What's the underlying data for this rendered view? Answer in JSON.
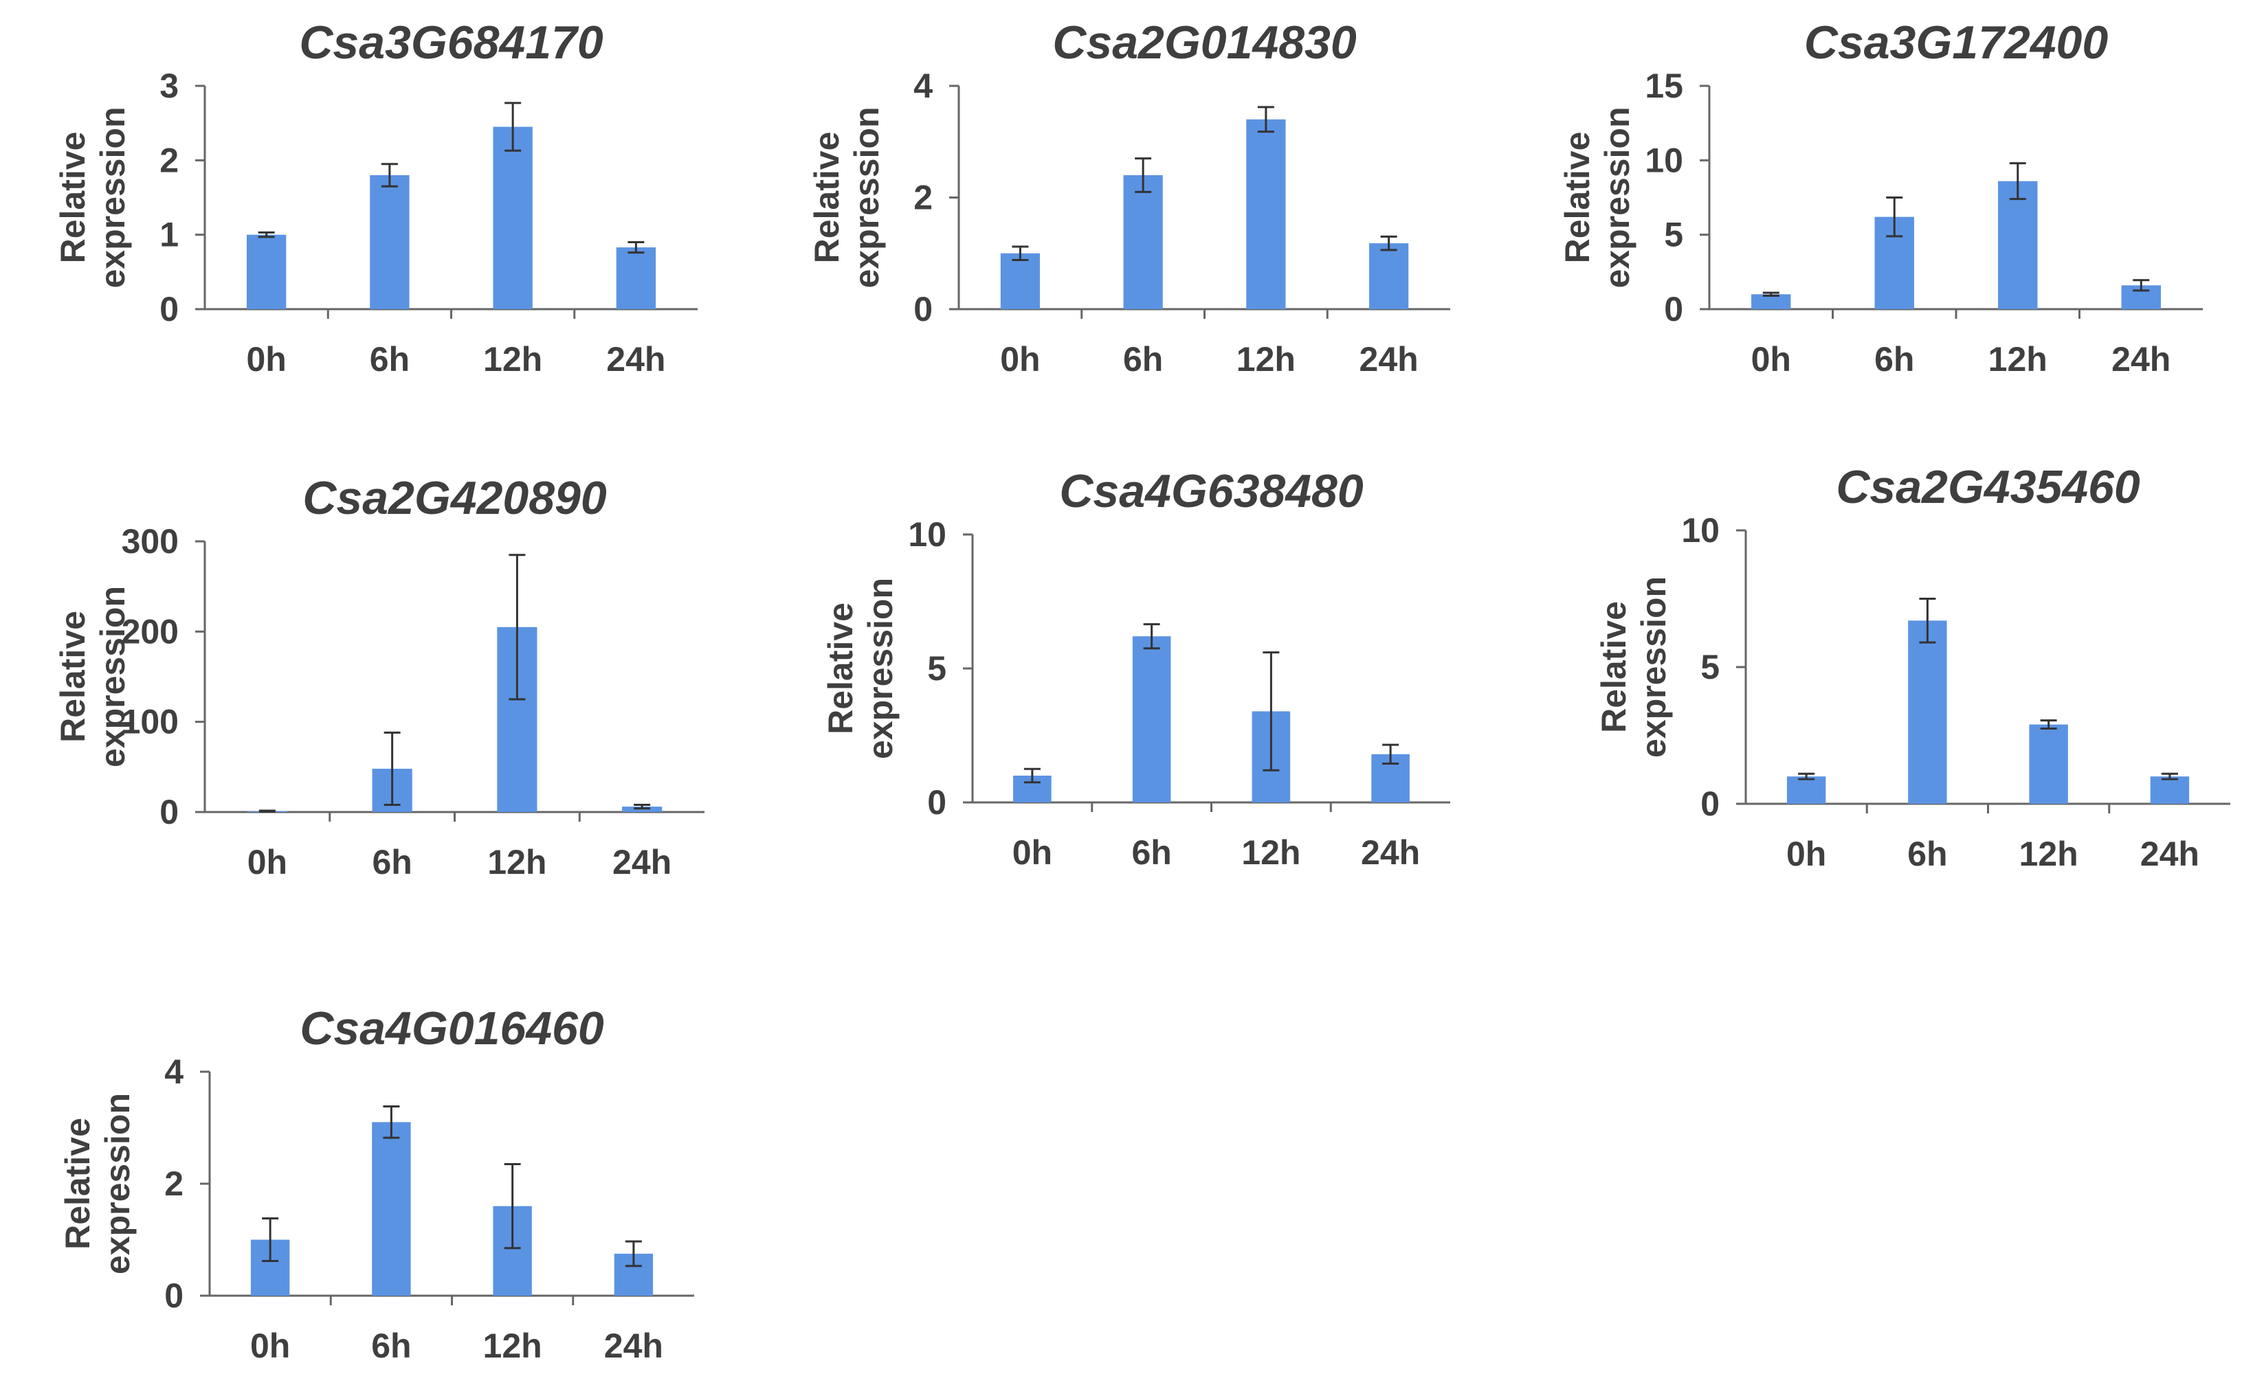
{
  "chart_data": [
    {
      "type": "bar",
      "title": "Csa3G684170",
      "categories": [
        "0h",
        "6h",
        "12h",
        "24h"
      ],
      "values": [
        1.0,
        1.8,
        2.45,
        0.83
      ],
      "errors": [
        0.03,
        0.15,
        0.32,
        0.07
      ],
      "ylabel": [
        "Relative",
        "expression"
      ],
      "ylim": [
        0,
        3
      ],
      "yticks": [
        0,
        1,
        2,
        3
      ],
      "bar_color": "#5b93e3"
    },
    {
      "type": "bar",
      "title": "Csa2G014830",
      "categories": [
        "0h",
        "6h",
        "12h",
        "24h"
      ],
      "values": [
        1.0,
        2.4,
        3.4,
        1.18
      ],
      "errors": [
        0.12,
        0.3,
        0.22,
        0.12
      ],
      "ylabel": [
        "Relative",
        "expression"
      ],
      "ylim": [
        0,
        4
      ],
      "yticks": [
        0,
        2,
        4
      ],
      "bar_color": "#5b93e3"
    },
    {
      "type": "bar",
      "title": "Csa3G172400",
      "categories": [
        "0h",
        "6h",
        "12h",
        "24h"
      ],
      "values": [
        1.0,
        6.2,
        8.6,
        1.6
      ],
      "errors": [
        0.1,
        1.3,
        1.2,
        0.35
      ],
      "ylabel": [
        "Relative",
        "expression"
      ],
      "ylim": [
        0,
        15
      ],
      "yticks": [
        0,
        5,
        10,
        15
      ],
      "bar_color": "#5b93e3"
    },
    {
      "type": "bar",
      "title": "Csa2G420890",
      "categories": [
        "0h",
        "6h",
        "12h",
        "24h"
      ],
      "values": [
        1.0,
        48,
        205,
        6
      ],
      "errors": [
        0.5,
        40,
        80,
        2
      ],
      "ylabel": [
        "Relative",
        "expression"
      ],
      "ylim": [
        0,
        300
      ],
      "yticks": [
        0,
        100,
        200,
        300
      ],
      "bar_color": "#5b93e3"
    },
    {
      "type": "bar",
      "title": "Csa4G638480",
      "categories": [
        "0h",
        "6h",
        "12h",
        "24h"
      ],
      "values": [
        1.0,
        6.2,
        3.4,
        1.8
      ],
      "errors": [
        0.25,
        0.45,
        2.2,
        0.35
      ],
      "ylabel": [
        "Relative",
        "expression"
      ],
      "ylim": [
        0,
        10
      ],
      "yticks": [
        0,
        5,
        10
      ],
      "bar_color": "#5b93e3"
    },
    {
      "type": "bar",
      "title": "Csa2G435460",
      "categories": [
        "0h",
        "6h",
        "12h",
        "24h"
      ],
      "values": [
        1.0,
        6.7,
        2.9,
        1.0
      ],
      "errors": [
        0.1,
        0.8,
        0.15,
        0.1
      ],
      "ylabel": [
        "Relative",
        "expression"
      ],
      "ylim": [
        0,
        10
      ],
      "yticks": [
        0,
        5,
        10
      ],
      "bar_color": "#5b93e3"
    },
    {
      "type": "bar",
      "title": "Csa4G016460",
      "categories": [
        "0h",
        "6h",
        "12h",
        "24h"
      ],
      "values": [
        1.0,
        3.1,
        1.6,
        0.75
      ],
      "errors": [
        0.38,
        0.28,
        0.75,
        0.22
      ],
      "ylabel": [
        "Relative",
        "expression"
      ],
      "ylim": [
        0,
        4
      ],
      "yticks": [
        0,
        2,
        4
      ],
      "bar_color": "#5b93e3"
    }
  ]
}
